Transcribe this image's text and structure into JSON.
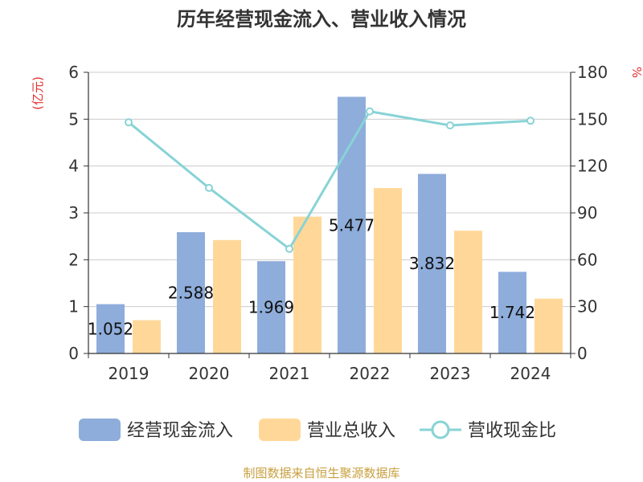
{
  "chart_data": {
    "type": "bar",
    "title": "历年经营现金流入、营业收入情况",
    "categories": [
      "2019",
      "2020",
      "2021",
      "2022",
      "2023",
      "2024"
    ],
    "series": [
      {
        "name": "经营现金流入",
        "type": "bar",
        "axis": "left",
        "color": "#8eaddb",
        "values": [
          1.052,
          2.588,
          1.969,
          5.477,
          3.832,
          1.742
        ]
      },
      {
        "name": "营业总收入",
        "type": "bar",
        "axis": "left",
        "color": "#ffd899",
        "values": [
          0.71,
          2.42,
          2.92,
          3.53,
          2.62,
          1.17
        ]
      },
      {
        "name": "营收现金比",
        "type": "line",
        "axis": "right",
        "color": "#88d3d6",
        "values": [
          148,
          106,
          67,
          155,
          146,
          149
        ]
      }
    ],
    "data_labels": [
      "1.052",
      "2.588",
      "1.969",
      "5.477",
      "3.832",
      "1.742"
    ],
    "y_left": {
      "label": "(亿元)",
      "min": 0,
      "max": 6,
      "ticks": [
        0,
        1,
        2,
        3,
        4,
        5,
        6
      ]
    },
    "y_right": {
      "label": "%",
      "min": 0,
      "max": 180,
      "ticks": [
        0,
        30,
        60,
        90,
        120,
        150,
        180
      ]
    },
    "grid": true,
    "legend_position": "bottom"
  },
  "source": "制图数据来自恒生聚源数据库"
}
